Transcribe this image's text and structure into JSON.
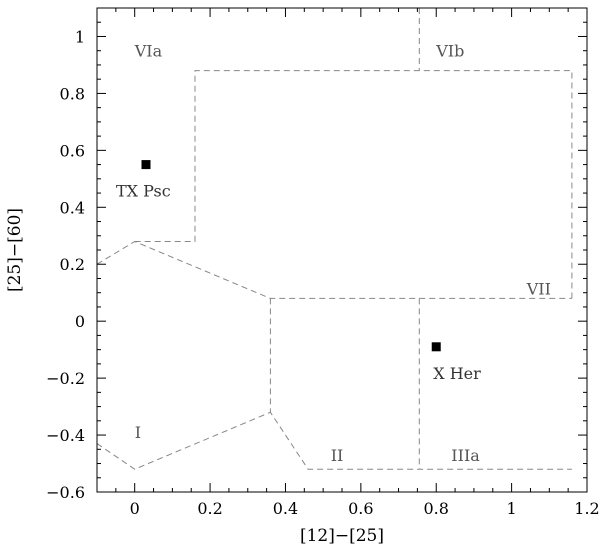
{
  "chart_data": {
    "type": "scatter",
    "xlabel": "[12]−[25]",
    "ylabel": "[25]−[60]",
    "xlim": [
      -0.1,
      1.2
    ],
    "ylim": [
      -0.6,
      1.1
    ],
    "xticks": [
      0,
      0.2,
      0.4,
      0.6,
      0.8,
      1,
      1.2
    ],
    "xtick_labels": [
      "0",
      "0.2",
      "0.4",
      "0.6",
      "0.8",
      "1",
      "1.2"
    ],
    "yticks": [
      -0.6,
      -0.4,
      -0.2,
      0,
      0.2,
      0.4,
      0.6,
      0.8,
      1
    ],
    "ytick_labels": [
      "−0.6",
      "−0.4",
      "−0.2",
      "0",
      "0.2",
      "0.4",
      "0.6",
      "0.8",
      "1"
    ],
    "grid": false,
    "points": [
      {
        "label": "TX Psc",
        "x": 0.03,
        "y": 0.55
      },
      {
        "label": "X Her",
        "x": 0.8,
        "y": -0.09
      }
    ],
    "regions": [
      {
        "label": "VIa",
        "x": 0.0,
        "y": 0.95
      },
      {
        "label": "VIb",
        "x": 0.8,
        "y": 0.95
      },
      {
        "label": "VII",
        "x": 1.04,
        "y": 0.115
      },
      {
        "label": "I",
        "x": 0.0,
        "y": -0.39
      },
      {
        "label": "II",
        "x": 0.52,
        "y": -0.47
      },
      {
        "label": "IIIa",
        "x": 0.84,
        "y": -0.47
      }
    ],
    "boundaries": [
      [
        [
          -0.1,
          0.2
        ],
        [
          0.0,
          0.28
        ],
        [
          0.36,
          0.08
        ],
        [
          1.16,
          0.08
        ]
      ],
      [
        [
          0.0,
          0.28
        ],
        [
          0.16,
          0.28
        ],
        [
          0.16,
          0.88
        ],
        [
          1.16,
          0.88
        ],
        [
          1.16,
          0.08
        ]
      ],
      [
        [
          0.755,
          1.1
        ],
        [
          0.755,
          0.88
        ]
      ],
      [
        [
          0.36,
          0.08
        ],
        [
          0.36,
          -0.32
        ]
      ],
      [
        [
          -0.1,
          -0.43
        ],
        [
          0.0,
          -0.52
        ],
        [
          0.36,
          -0.32
        ],
        [
          0.46,
          -0.52
        ],
        [
          1.16,
          -0.52
        ]
      ],
      [
        [
          0.755,
          0.08
        ],
        [
          0.755,
          -0.52
        ]
      ]
    ]
  }
}
